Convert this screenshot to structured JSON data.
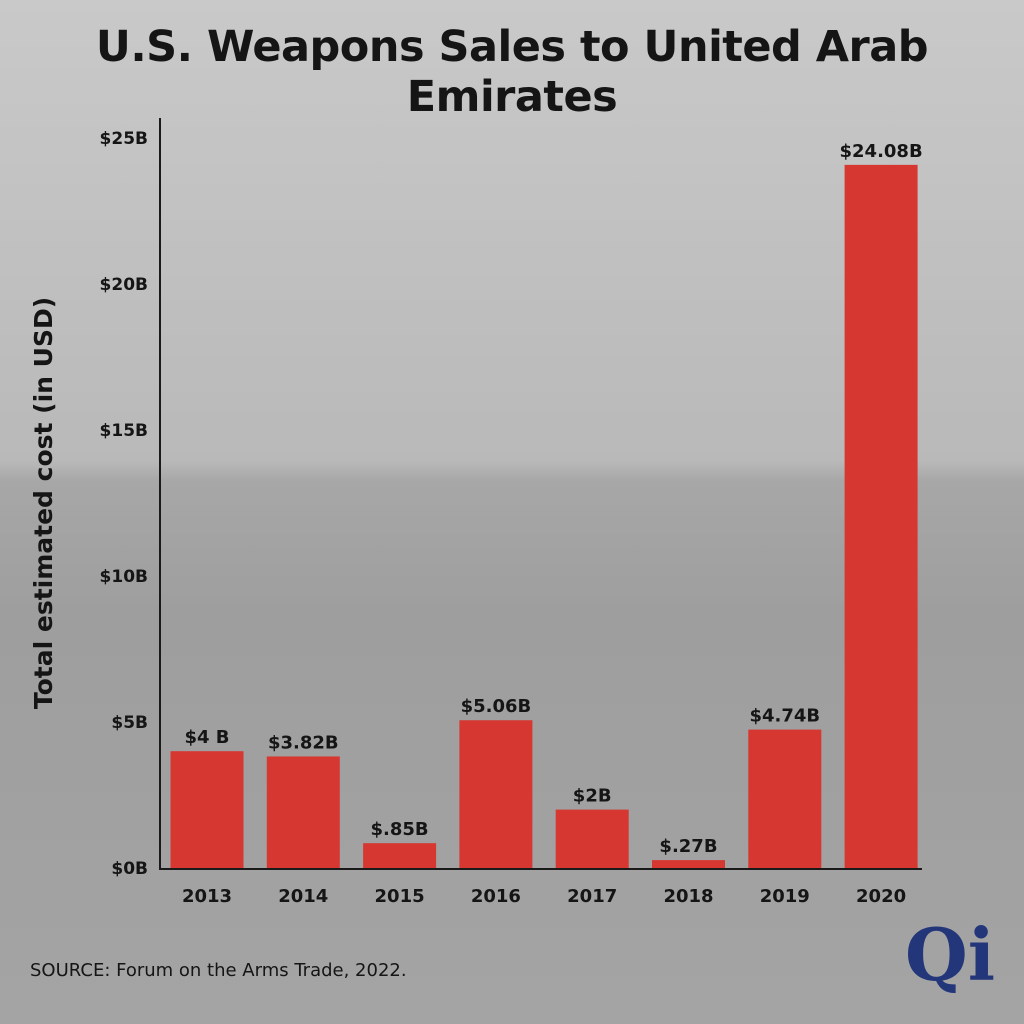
{
  "title": "U.S. Weapons Sales to United Arab Emirates",
  "source": "SOURCE: Forum on the Arms Trade, 2022.",
  "logo_text": "Qi",
  "colors": {
    "bar": "#d63730",
    "text": "#151515",
    "logo": "#23367a",
    "axis": "#1a1a1a"
  },
  "chart_data": {
    "type": "bar",
    "title": "U.S. Weapons Sales to United Arab Emirates",
    "xlabel": "",
    "ylabel": "Total estimated cost (in USD)",
    "ylim": [
      0,
      25
    ],
    "grid": false,
    "yticks": [
      {
        "value": 0,
        "label": "$0B"
      },
      {
        "value": 5,
        "label": "$5B"
      },
      {
        "value": 10,
        "label": "$10B"
      },
      {
        "value": 15,
        "label": "$15B"
      },
      {
        "value": 20,
        "label": "$20B"
      },
      {
        "value": 25,
        "label": "$25B"
      }
    ],
    "categories": [
      "2013",
      "2014",
      "2015",
      "2016",
      "2017",
      "2018",
      "2019",
      "2020"
    ],
    "values": [
      4,
      3.82,
      0.85,
      5.06,
      2,
      0.27,
      4.74,
      24.08
    ],
    "value_labels": [
      "$4 B",
      "$3.82B",
      "$.85B",
      "$5.06B",
      "$2B",
      "$.27B",
      "$4.74B",
      "$24.08B"
    ]
  }
}
